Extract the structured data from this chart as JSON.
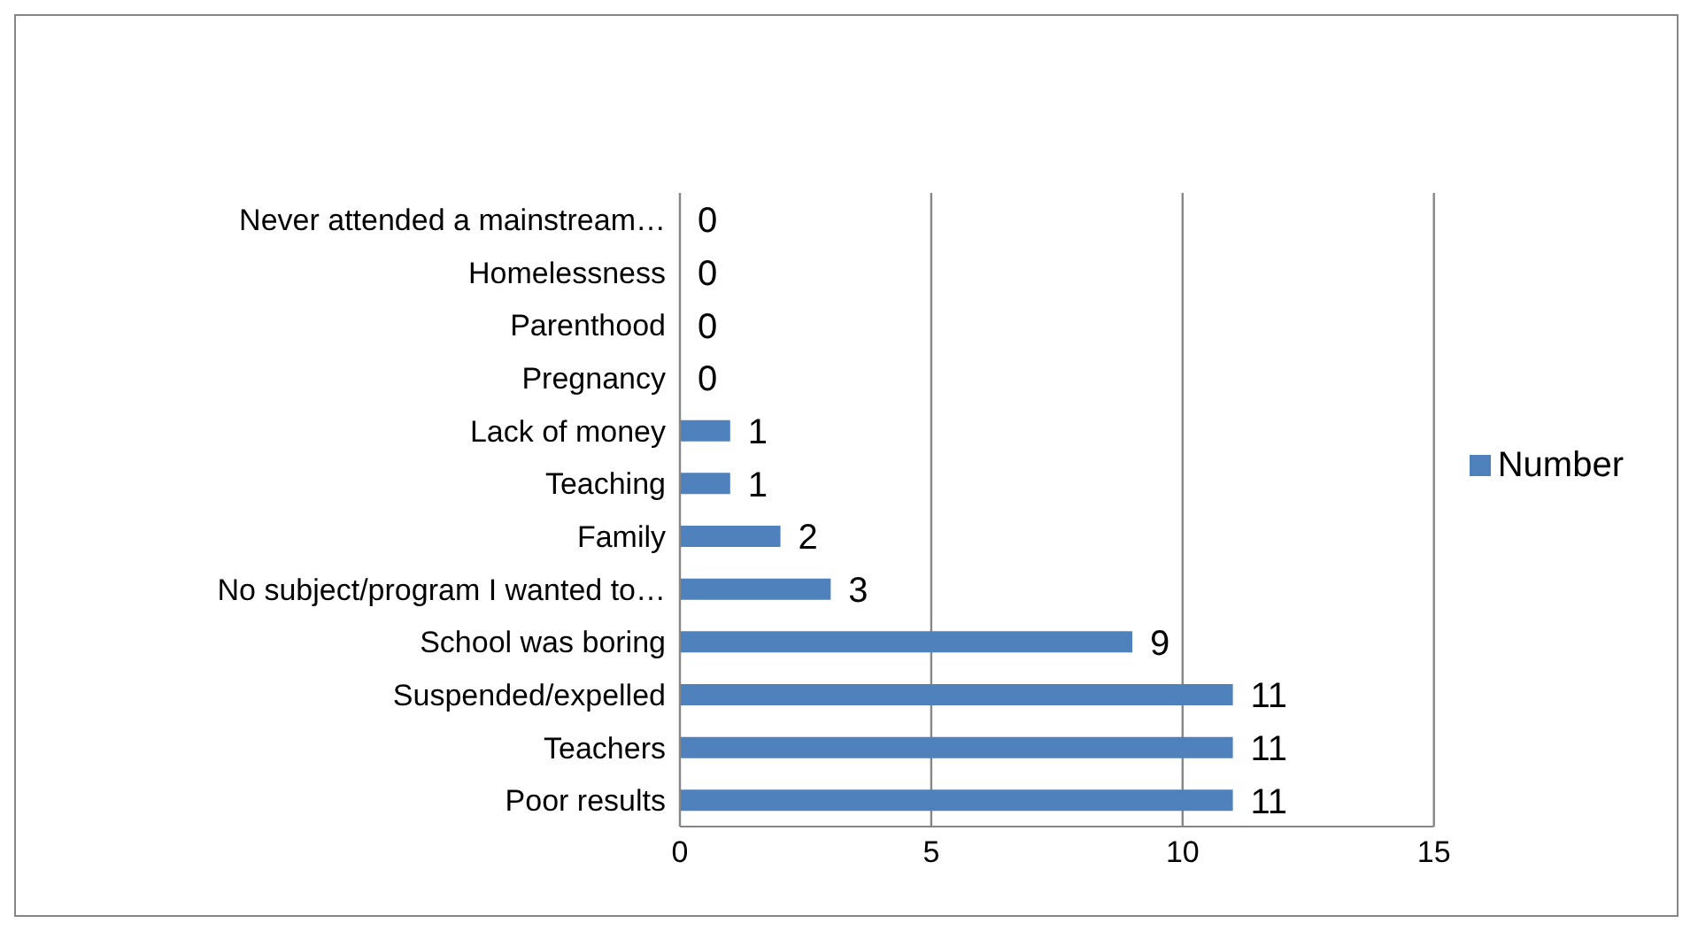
{
  "chart_data": {
    "type": "bar",
    "orientation": "horizontal",
    "categories": [
      "Never attended a mainstream…",
      "Homelessness",
      "Parenthood",
      "Pregnancy",
      "Lack of money",
      "Teaching",
      "Family",
      "No subject/program I wanted to…",
      "School was boring",
      "Suspended/expelled",
      "Teachers",
      "Poor results"
    ],
    "series": [
      {
        "name": "Number",
        "color": "#4f81bd",
        "values": [
          0,
          0,
          0,
          0,
          1,
          1,
          2,
          3,
          9,
          11,
          11,
          11
        ]
      }
    ],
    "xlim": [
      0,
      15
    ],
    "xticks": [
      0,
      5,
      10,
      15
    ],
    "grid": "x",
    "legend": "right",
    "data_labels": true
  }
}
